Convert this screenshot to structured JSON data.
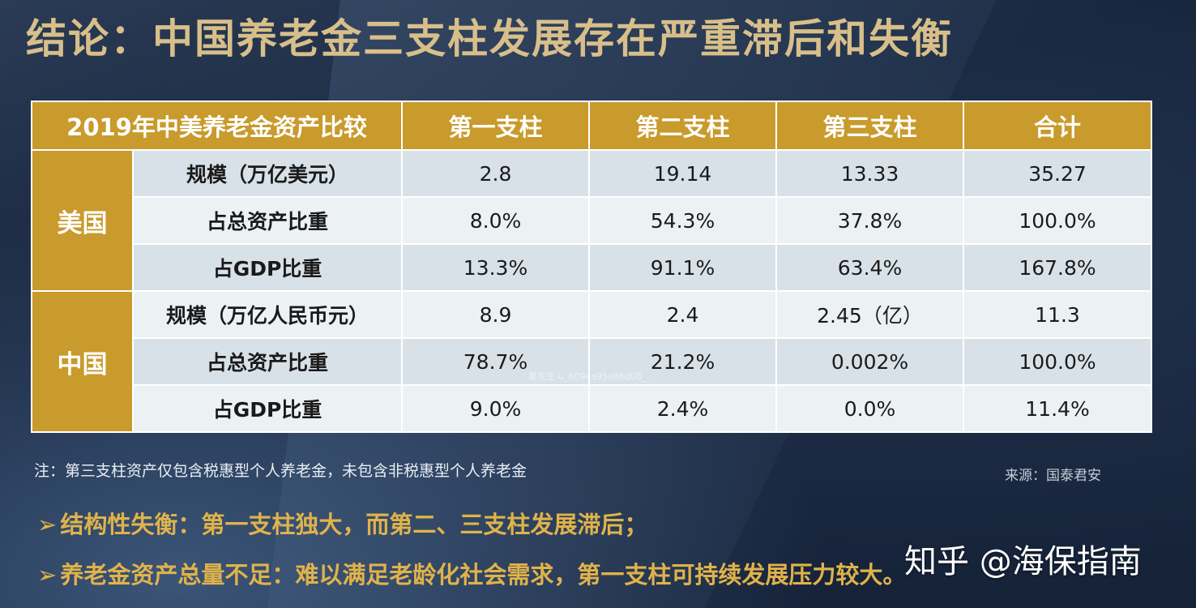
{
  "title": "结论：中国养老金三支柱发展存在严重滞后和失衡",
  "table": {
    "headers": [
      "2019年中美养老金资产比较",
      "第一支柱",
      "第二支柱",
      "第三支柱",
      "合计"
    ],
    "groups": [
      {
        "country": "美国",
        "rows": [
          {
            "metric": "规模（万亿美元）",
            "values": [
              "2.8",
              "19.14",
              "13.33",
              "35.27"
            ]
          },
          {
            "metric": "占总资产比重",
            "values": [
              "8.0%",
              "54.3%",
              "37.8%",
              "100.0%"
            ]
          },
          {
            "metric": "占GDP比重",
            "values": [
              "13.3%",
              "91.1%",
              "63.4%",
              "167.8%"
            ]
          }
        ]
      },
      {
        "country": "中国",
        "rows": [
          {
            "metric": "规模（万亿人民币元）",
            "values": [
              "8.9",
              "2.4",
              "2.45（亿）",
              "11.3"
            ]
          },
          {
            "metric": "占总资产比重",
            "values": [
              "78.7%",
              "21.2%",
              "0.002%",
              "100.0%"
            ]
          },
          {
            "metric": "占GDP比重",
            "values": [
              "9.0%",
              "2.4%",
              "0.0%",
              "11.4%"
            ]
          }
        ]
      }
    ]
  },
  "watermark": "慕先生-u_6094a95e86d08_...",
  "note": "注：第三支柱资产仅包含税惠型个人养老金，未包含非税惠型个人养老金",
  "source": "来源：国泰君安",
  "bullets": [
    {
      "arrow": "➢",
      "text": "结构性失衡：第一支柱独大，而第二、三支柱发展滞后；"
    },
    {
      "arrow": "➢",
      "text": "养老金资产总量不足：难以满足老龄化社会需求，第一支柱可持续发展压力较大。"
    }
  ],
  "zhihu_watermark": "知乎 @海保指南",
  "colors": {
    "gold": "#c99a2c",
    "title_gold": "#d8bf8a",
    "row_light": "#ecf1f4",
    "row_dark": "#d8e1e8"
  }
}
